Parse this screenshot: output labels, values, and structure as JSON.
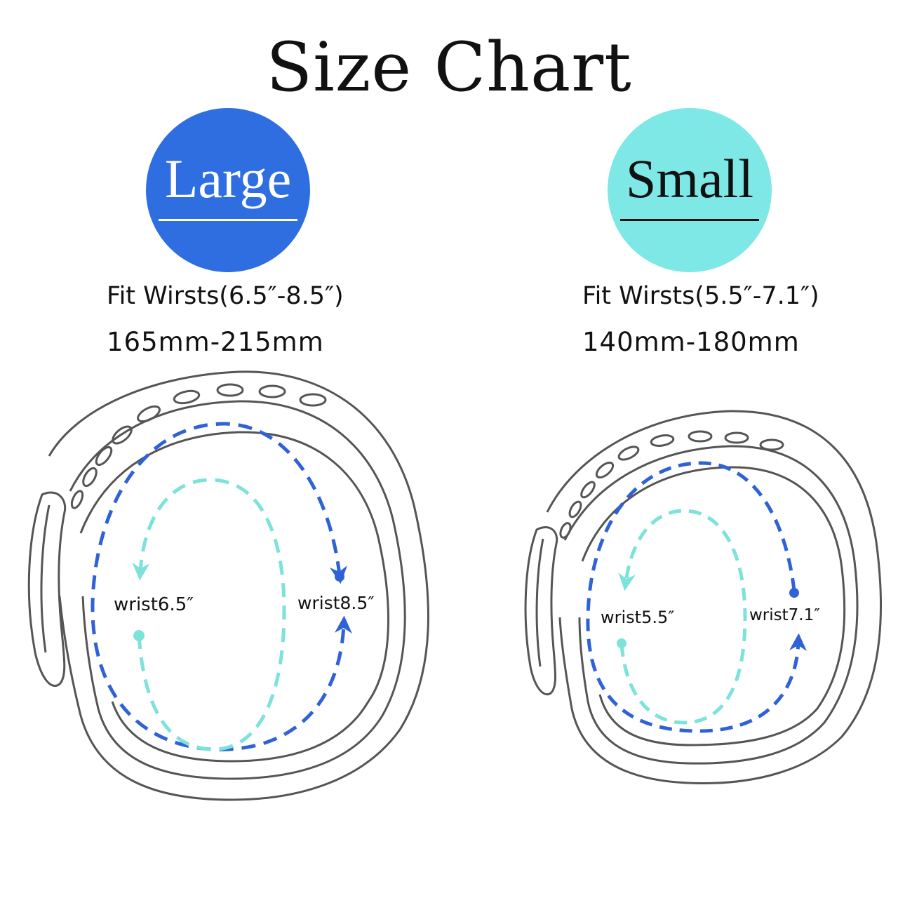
{
  "title": "Size Chart",
  "sizes": [
    {
      "label": "Large",
      "fit": "Fit Wirsts(6.5″-8.5″)",
      "mm": "165mm-215mm",
      "inner_label": "wrist6.5″",
      "outer_label": "wrist8.5″",
      "badge_color": "#2f6ee0"
    },
    {
      "label": "Small",
      "fit": "Fit Wirsts(5.5″-7.1″)",
      "mm": "140mm-180mm",
      "inner_label": "wrist5.5″",
      "outer_label": "wrist7.1″",
      "badge_color": "#7de8e6"
    }
  ],
  "colors": {
    "outline": "#555555",
    "outer_arrow": "#2f62d6",
    "inner_arrow": "#7de3da"
  }
}
